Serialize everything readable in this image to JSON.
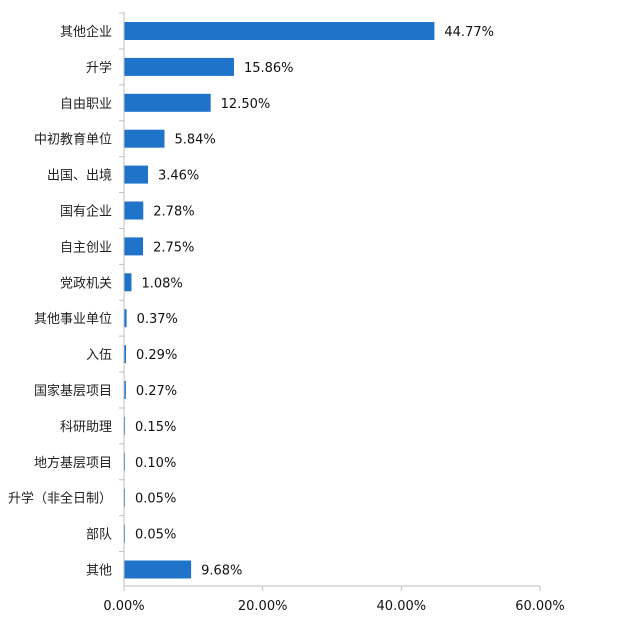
{
  "chart_data": {
    "type": "bar",
    "orientation": "horizontal",
    "categories": [
      "其他企业",
      "升学",
      "自由职业",
      "中初教育单位",
      "出国、出境",
      "国有企业",
      "自主创业",
      "党政机关",
      "其他事业单位",
      "入伍",
      "国家基层项目",
      "科研助理",
      "地方基层项目",
      "升学（非全日制）",
      "部队",
      "其他"
    ],
    "values": [
      44.77,
      15.86,
      12.5,
      5.84,
      3.46,
      2.78,
      2.75,
      1.08,
      0.37,
      0.29,
      0.27,
      0.15,
      0.1,
      0.05,
      0.05,
      9.68
    ],
    "value_labels": [
      "44.77%",
      "15.86%",
      "12.50%",
      "5.84%",
      "3.46%",
      "2.78%",
      "2.75%",
      "1.08%",
      "0.37%",
      "0.29%",
      "0.27%",
      "0.15%",
      "0.10%",
      "0.05%",
      "0.05%",
      "9.68%"
    ],
    "xlim": [
      0,
      60
    ],
    "x_ticks": [
      0,
      20,
      40,
      60
    ],
    "x_tick_labels": [
      "0.00%",
      "20.00%",
      "40.00%",
      "60.00%"
    ],
    "bar_color": "#1f73c9",
    "grid": false,
    "legend": "none"
  }
}
